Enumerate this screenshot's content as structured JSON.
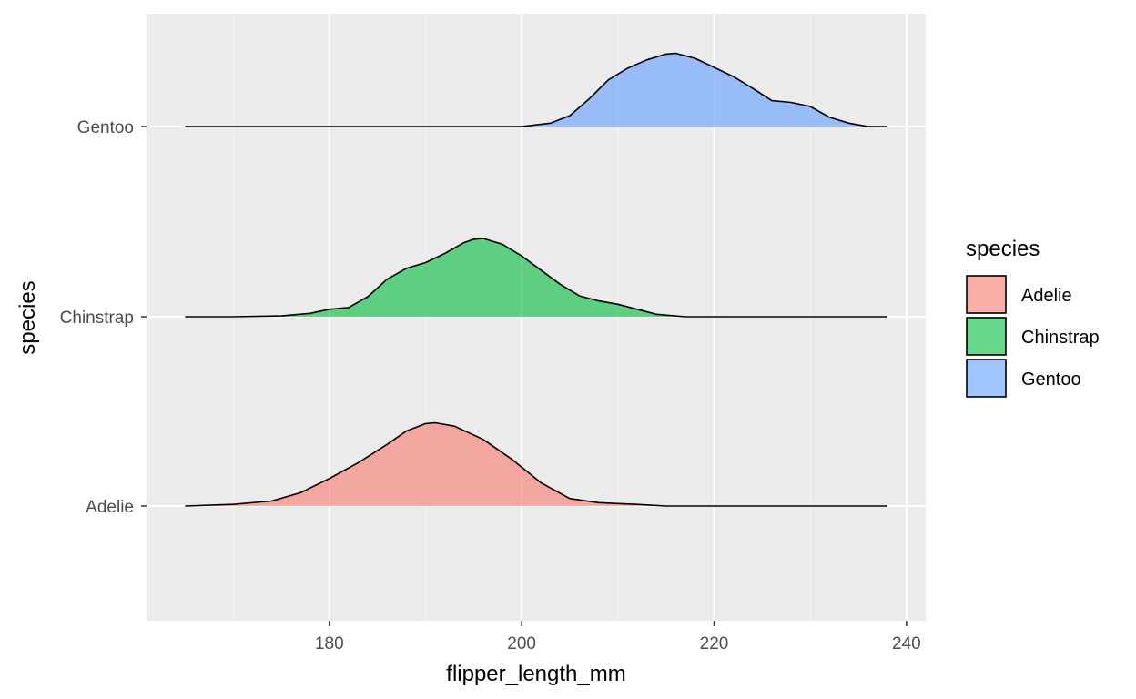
{
  "chart_data": {
    "type": "ridgeline",
    "xlabel": "flipper_length_mm",
    "ylabel": "species",
    "xlim": [
      161,
      242
    ],
    "x_ticks": [
      180,
      200,
      220,
      240
    ],
    "x_minor_ticks": [
      170,
      190,
      210,
      230
    ],
    "categories": [
      "Adelie",
      "Chinstrap",
      "Gentoo"
    ],
    "grid": true,
    "background": "#EBEBEB",
    "legend": {
      "title": "species",
      "position": "right",
      "entries": [
        "Adelie",
        "Chinstrap",
        "Gentoo"
      ]
    },
    "series": [
      {
        "name": "Adelie",
        "color": "#F8766D",
        "x": [
          165,
          170,
          174,
          177,
          180,
          183,
          186,
          188,
          190,
          191,
          193,
          196,
          199,
          202,
          205,
          208,
          210,
          212,
          215,
          220,
          230,
          238
        ],
        "density": [
          0.0,
          0.02,
          0.06,
          0.16,
          0.33,
          0.52,
          0.74,
          0.9,
          0.99,
          1.0,
          0.96,
          0.8,
          0.56,
          0.28,
          0.09,
          0.04,
          0.03,
          0.02,
          0.0,
          0.0,
          0.0,
          0.0
        ]
      },
      {
        "name": "Chinstrap",
        "color": "#00BA38",
        "x": [
          165,
          170,
          175,
          178,
          180,
          182,
          184,
          186,
          188,
          190,
          192,
          194,
          195,
          196,
          198,
          200,
          202,
          204,
          206,
          208,
          210,
          212,
          214,
          217,
          220,
          238
        ],
        "density": [
          0.0,
          0.0,
          0.01,
          0.04,
          0.09,
          0.11,
          0.24,
          0.45,
          0.58,
          0.65,
          0.76,
          0.89,
          0.93,
          0.94,
          0.87,
          0.73,
          0.56,
          0.39,
          0.25,
          0.19,
          0.15,
          0.09,
          0.03,
          0.0,
          0.0,
          0.0
        ]
      },
      {
        "name": "Gentoo",
        "color": "#619CFF",
        "x": [
          165,
          195,
          200,
          203,
          205,
          207,
          209,
          211,
          213,
          215,
          216,
          218,
          220,
          222,
          224,
          226,
          228,
          230,
          232,
          234,
          236,
          238
        ],
        "density": [
          0.0,
          0.0,
          0.0,
          0.04,
          0.13,
          0.33,
          0.56,
          0.7,
          0.8,
          0.87,
          0.88,
          0.82,
          0.71,
          0.6,
          0.46,
          0.31,
          0.29,
          0.24,
          0.11,
          0.04,
          0.0,
          0.0
        ]
      }
    ]
  }
}
